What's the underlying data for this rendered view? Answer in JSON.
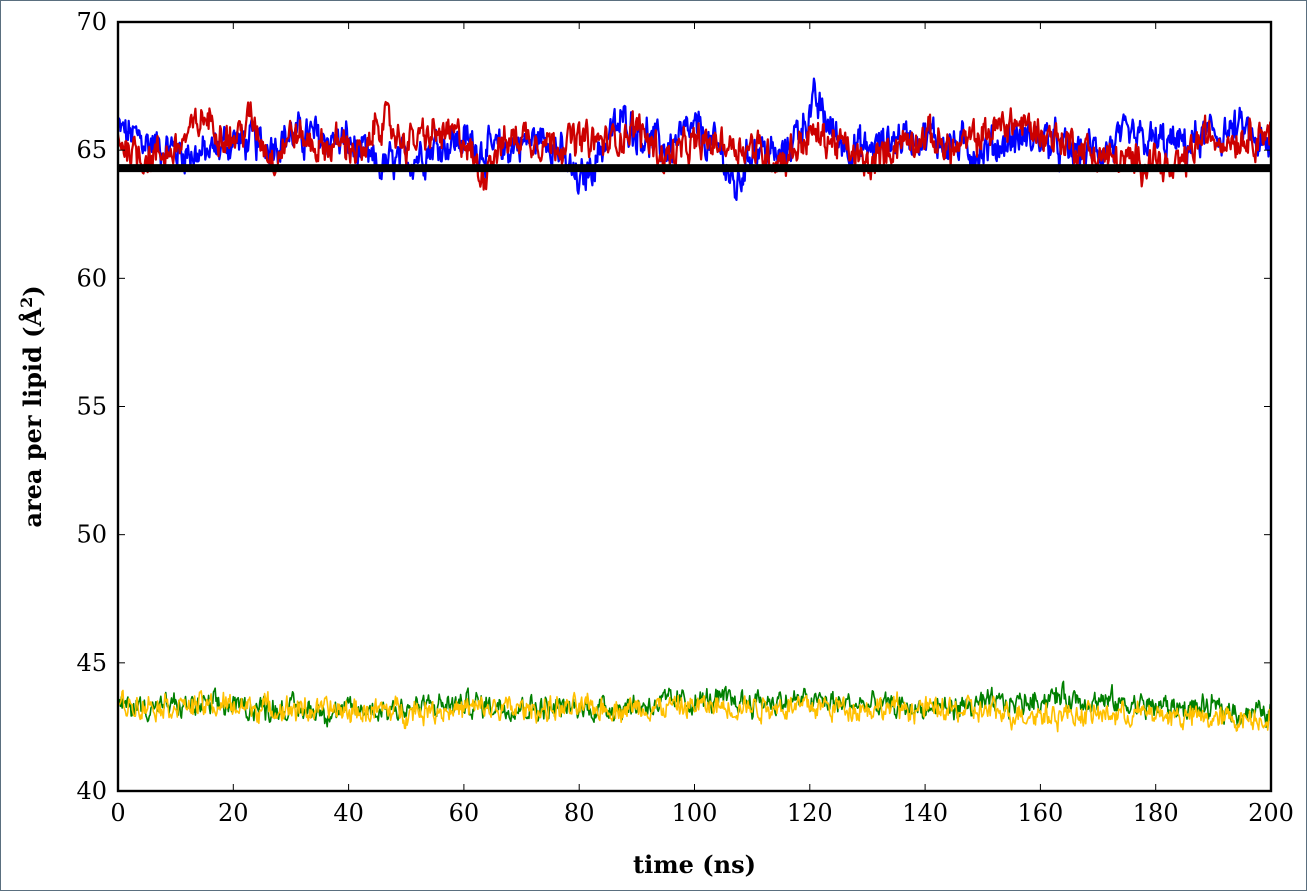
{
  "chart_data": {
    "type": "line",
    "title": "",
    "xlabel": "time (ns)",
    "ylabel_main": "area per lipid (Å",
    "ylabel_sup": "2",
    "ylabel_close": ")",
    "xlim": [
      0,
      200
    ],
    "ylim": [
      40,
      70
    ],
    "xticks": [
      0,
      20,
      40,
      60,
      80,
      100,
      120,
      140,
      160,
      180,
      200
    ],
    "yticks": [
      40,
      45,
      50,
      55,
      60,
      65,
      70
    ],
    "grid": false,
    "legend": "none",
    "reference_line": {
      "y": 64.3,
      "color": "#000000"
    },
    "series": [
      {
        "color": "#0000ff",
        "mean": 65.3,
        "noise": 0.55,
        "points": [
          [
            0,
            65.8
          ],
          [
            5,
            65.3
          ],
          [
            10,
            65.0
          ],
          [
            15,
            64.8
          ],
          [
            20,
            65.4
          ],
          [
            25,
            65.2
          ],
          [
            30,
            65.6
          ],
          [
            35,
            65.5
          ],
          [
            40,
            65.3
          ],
          [
            45,
            64.3
          ],
          [
            50,
            64.6
          ],
          [
            55,
            65.2
          ],
          [
            60,
            65.4
          ],
          [
            65,
            64.9
          ],
          [
            70,
            65.3
          ],
          [
            75,
            65.5
          ],
          [
            80,
            63.6
          ],
          [
            85,
            65.5
          ],
          [
            88,
            66.2
          ],
          [
            90,
            65.8
          ],
          [
            95,
            65.0
          ],
          [
            100,
            65.8
          ],
          [
            105,
            64.8
          ],
          [
            107,
            63.3
          ],
          [
            110,
            65.2
          ],
          [
            115,
            64.6
          ],
          [
            118,
            65.8
          ],
          [
            121,
            66.8
          ],
          [
            125,
            65.4
          ],
          [
            130,
            65.0
          ],
          [
            135,
            65.5
          ],
          [
            140,
            65.6
          ],
          [
            145,
            65.2
          ],
          [
            150,
            65.0
          ],
          [
            155,
            65.4
          ],
          [
            160,
            65.5
          ],
          [
            165,
            64.9
          ],
          [
            170,
            65.0
          ],
          [
            175,
            65.4
          ],
          [
            180,
            65.3
          ],
          [
            185,
            65.2
          ],
          [
            190,
            65.6
          ],
          [
            195,
            65.8
          ],
          [
            200,
            64.8
          ]
        ]
      },
      {
        "color": "#cc0000",
        "mean": 65.2,
        "noise": 0.5,
        "points": [
          [
            0,
            65.4
          ],
          [
            5,
            64.7
          ],
          [
            10,
            65.0
          ],
          [
            15,
            66.3
          ],
          [
            20,
            65.4
          ],
          [
            23,
            66.2
          ],
          [
            27,
            64.6
          ],
          [
            30,
            65.7
          ],
          [
            35,
            65.1
          ],
          [
            40,
            65.3
          ],
          [
            43,
            64.6
          ],
          [
            45,
            66.3
          ],
          [
            50,
            65.3
          ],
          [
            55,
            65.6
          ],
          [
            60,
            65.5
          ],
          [
            63,
            63.9
          ],
          [
            65,
            65.0
          ],
          [
            70,
            65.6
          ],
          [
            75,
            65.3
          ],
          [
            80,
            65.4
          ],
          [
            85,
            65.3
          ],
          [
            90,
            65.9
          ],
          [
            95,
            64.7
          ],
          [
            100,
            65.2
          ],
          [
            105,
            65.3
          ],
          [
            110,
            65.1
          ],
          [
            115,
            64.6
          ],
          [
            120,
            65.6
          ],
          [
            125,
            65.3
          ],
          [
            130,
            64.3
          ],
          [
            135,
            65.3
          ],
          [
            140,
            65.6
          ],
          [
            145,
            65.0
          ],
          [
            150,
            65.6
          ],
          [
            155,
            66.1
          ],
          [
            160,
            65.7
          ],
          [
            165,
            65.3
          ],
          [
            170,
            64.8
          ],
          [
            175,
            64.5
          ],
          [
            180,
            64.7
          ],
          [
            183,
            64.0
          ],
          [
            188,
            65.5
          ],
          [
            195,
            65.5
          ],
          [
            200,
            65.8
          ]
        ]
      },
      {
        "color": "#008000",
        "mean": 43.3,
        "noise": 0.35,
        "points": [
          [
            0,
            43.3
          ],
          [
            20,
            43.3
          ],
          [
            40,
            43.1
          ],
          [
            60,
            43.4
          ],
          [
            80,
            43.2
          ],
          [
            100,
            43.5
          ],
          [
            120,
            43.5
          ],
          [
            140,
            43.2
          ],
          [
            155,
            43.4
          ],
          [
            163,
            43.7
          ],
          [
            170,
            43.5
          ],
          [
            180,
            43.3
          ],
          [
            190,
            43.2
          ],
          [
            200,
            43.0
          ]
        ]
      },
      {
        "color": "#ffc000",
        "mean": 43.2,
        "noise": 0.35,
        "points": [
          [
            0,
            43.4
          ],
          [
            20,
            43.3
          ],
          [
            40,
            43.1
          ],
          [
            60,
            43.2
          ],
          [
            80,
            43.2
          ],
          [
            100,
            43.3
          ],
          [
            120,
            43.3
          ],
          [
            140,
            43.2
          ],
          [
            160,
            43.0
          ],
          [
            180,
            43.0
          ],
          [
            190,
            42.8
          ],
          [
            200,
            42.9
          ]
        ]
      }
    ]
  }
}
